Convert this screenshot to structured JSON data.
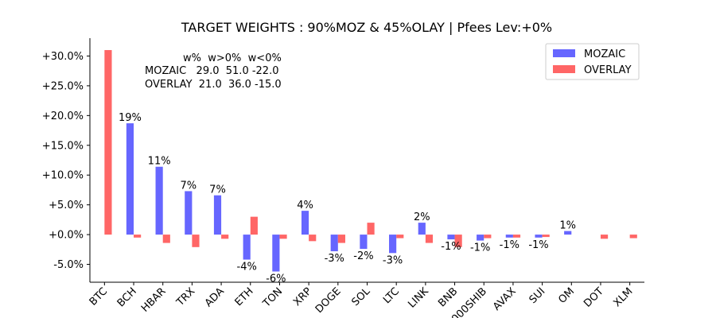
{
  "chart_data": {
    "type": "bar",
    "title": "TARGET WEIGHTS : 90%MOZ & 45%OLAY | Pfees Lev:+0%",
    "xlabel": "",
    "ylabel": "",
    "categories": [
      "BTC",
      "BCH",
      "HBAR",
      "TRX",
      "ADA",
      "ETH",
      "TON",
      "XRP",
      "DOGE",
      "SOL",
      "LTC",
      "LINK",
      "BNB",
      "1000SHIB",
      "AVAX",
      "SUI",
      "OM",
      "DOT",
      "XLM"
    ],
    "ylim": [
      -8,
      33
    ],
    "yticks": [
      -5,
      0,
      5,
      10,
      15,
      20,
      25,
      30
    ],
    "ytick_labels": [
      "-5.0%",
      "+0.0%",
      "+5.0%",
      "+10.0%",
      "+15.0%",
      "+20.0%",
      "+25.0%",
      "+30.0%"
    ],
    "grid": false,
    "legend_position": "top-right",
    "series": [
      {
        "name": "MOZAIC",
        "color": "#6666ff",
        "values": [
          0,
          18.7,
          11.4,
          7.3,
          6.6,
          -4.2,
          -6.2,
          4.0,
          -2.8,
          -2.4,
          -3.1,
          2.0,
          -0.8,
          -1.0,
          -0.5,
          -0.5,
          0.6,
          0,
          0
        ],
        "labels": [
          "",
          "19%",
          "11%",
          "7%",
          "7%",
          "-4%",
          "-6%",
          "4%",
          "-3%",
          "-2%",
          "-3%",
          "2%",
          "-1%",
          "-1%",
          "-1%",
          "-1%",
          "1%",
          "",
          ""
        ]
      },
      {
        "name": "OVERLAY",
        "color": "#ff6666",
        "values": [
          31.0,
          -0.5,
          -1.4,
          -2.1,
          -0.7,
          3.0,
          -0.7,
          -1.1,
          -1.4,
          2.0,
          -0.6,
          -1.4,
          -2.1,
          -0.6,
          -0.5,
          -0.4,
          0,
          -0.7,
          -0.6
        ]
      }
    ],
    "stats_table": {
      "header": "w%  w>0%  w<0%",
      "rows": [
        "MOZAIC   29.0  51.0 -22.0",
        "OVERLAY  21.0  36.0 -15.0"
      ]
    }
  }
}
